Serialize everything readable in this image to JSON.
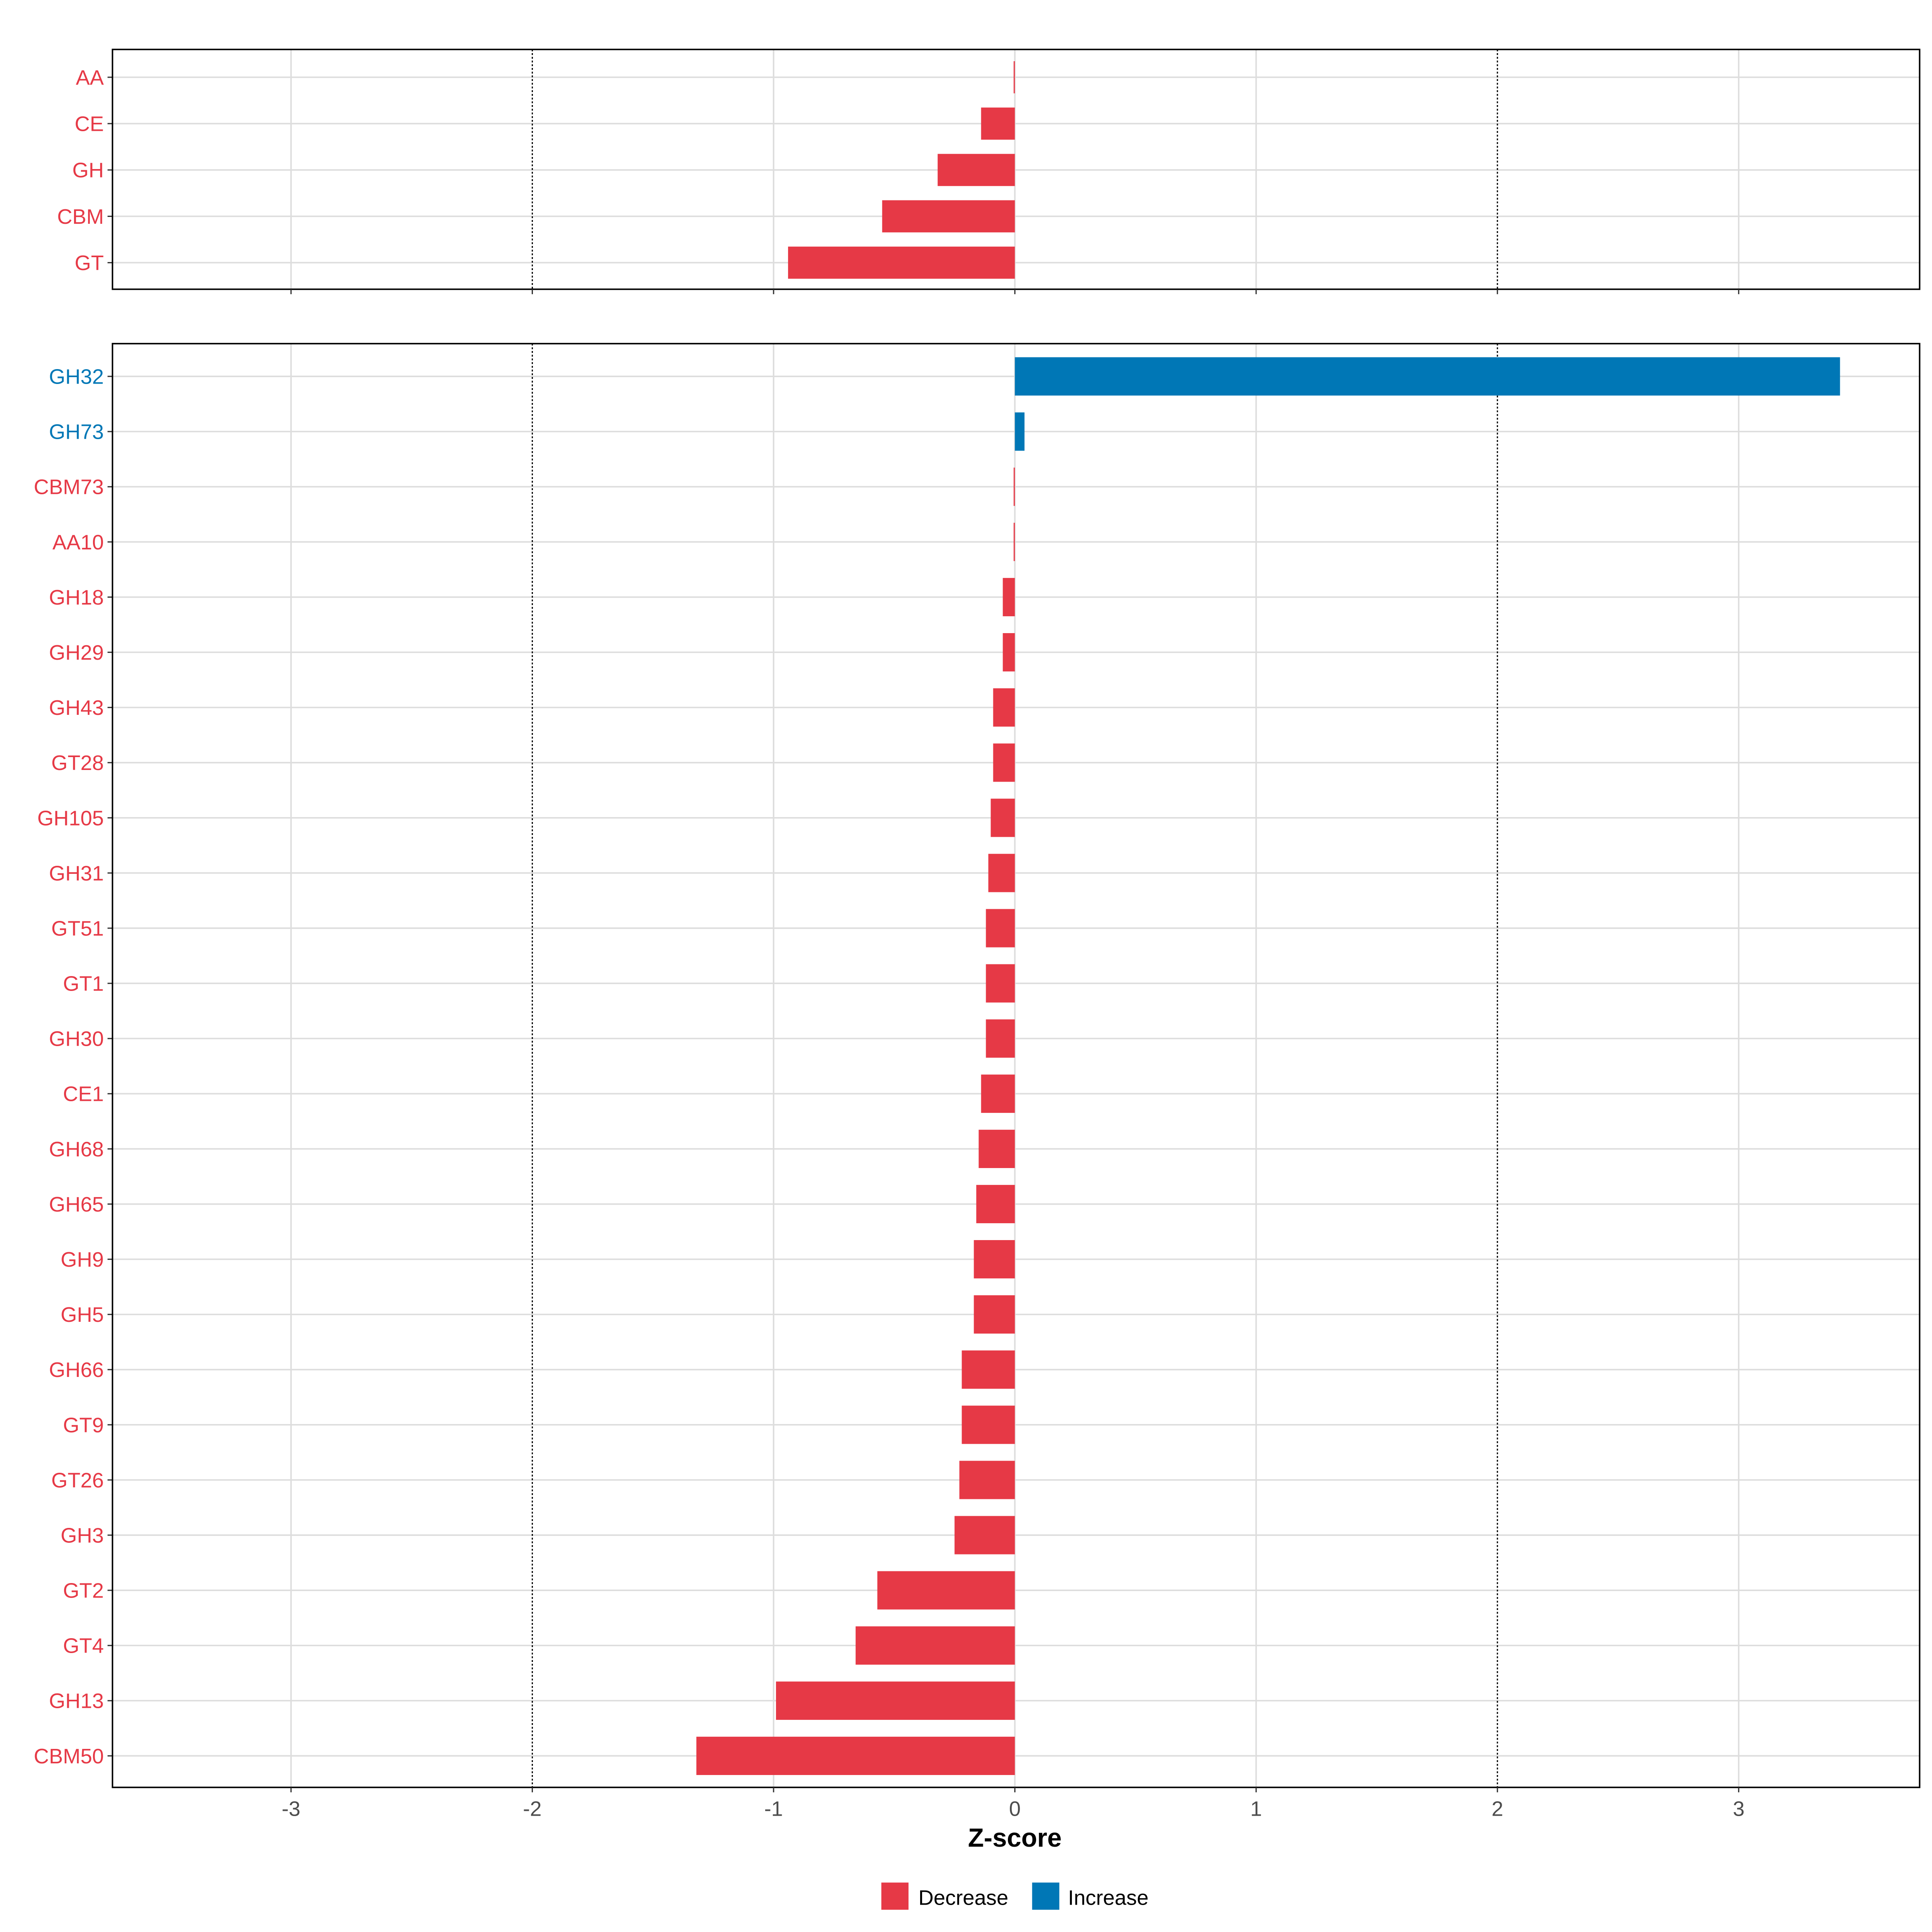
{
  "chart_data": [
    {
      "type": "bar",
      "orientation": "horizontal",
      "panel": "top",
      "categories": [
        "AA",
        "CE",
        "GH",
        "CBM",
        "GT"
      ],
      "values": [
        -0.005,
        -0.14,
        -0.32,
        -0.55,
        -0.94
      ],
      "xlim": [
        -3.74,
        3.75
      ],
      "reference_lines": [
        -2,
        2
      ]
    },
    {
      "type": "bar",
      "orientation": "horizontal",
      "panel": "bottom",
      "categories": [
        "GH32",
        "GH73",
        "CBM73",
        "AA10",
        "GH18",
        "GH29",
        "GH43",
        "GT28",
        "GH105",
        "GH31",
        "GT51",
        "GT1",
        "GH30",
        "CE1",
        "GH68",
        "GH65",
        "GH9",
        "GH5",
        "GH66",
        "GT9",
        "GT26",
        "GH3",
        "GT2",
        "GT4",
        "GH13",
        "CBM50"
      ],
      "values": [
        3.42,
        0.04,
        -0.005,
        -0.005,
        -0.05,
        -0.05,
        -0.09,
        -0.09,
        -0.1,
        -0.11,
        -0.12,
        -0.12,
        -0.12,
        -0.14,
        -0.15,
        -0.16,
        -0.17,
        -0.17,
        -0.22,
        -0.22,
        -0.23,
        -0.25,
        -0.57,
        -0.66,
        -0.99,
        -1.32
      ],
      "xlim": [
        -3.74,
        3.75
      ],
      "xticks": [
        -3,
        -2,
        -1,
        0,
        1,
        2,
        3
      ],
      "xtick_labels": [
        "-3",
        "-2",
        "-1",
        "0",
        "1",
        "2",
        "3"
      ],
      "xlabel": "Z-score",
      "reference_lines": [
        -2,
        2
      ]
    }
  ],
  "legend": {
    "placement": "bottom",
    "items": [
      {
        "label": "Decrease",
        "color": "#E63946"
      },
      {
        "label": "Increase",
        "color": "#0077B6"
      }
    ]
  },
  "colors": {
    "decrease": "#E63946",
    "increase": "#0077B6",
    "grid": "#DDDDDD"
  }
}
